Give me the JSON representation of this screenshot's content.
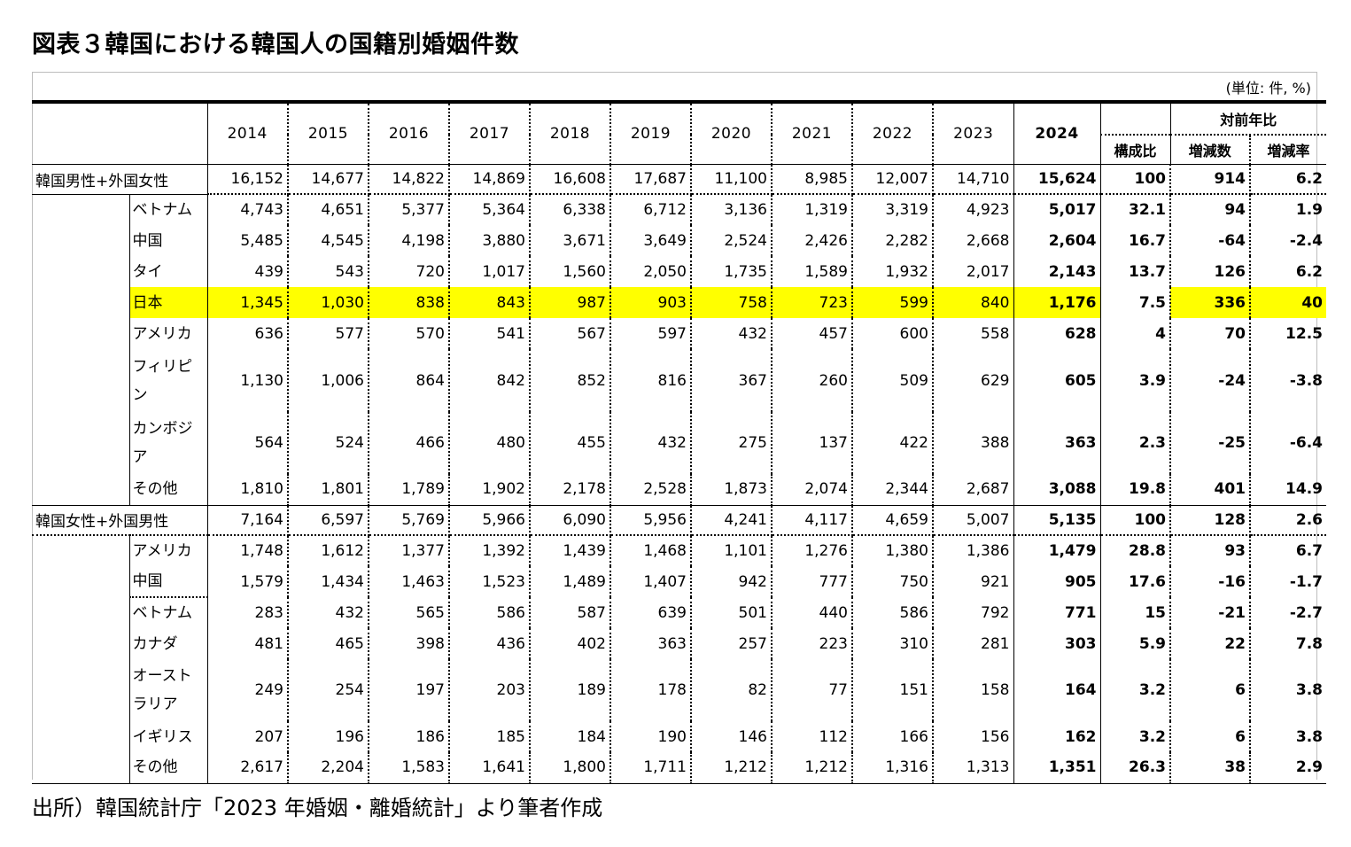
{
  "title": "図表３韓国における韓国人の国籍別婚姻件数",
  "unit_note": "(単位: 件, %)",
  "source": "出所）韓国統計庁「2023 年婚姻・離婚統計」より筆者作成",
  "header": {
    "years": [
      "2014",
      "2015",
      "2016",
      "2017",
      "2018",
      "2019",
      "2020",
      "2021",
      "2022",
      "2023",
      "2024"
    ],
    "yoy_group": "対前年比",
    "share": "構成比",
    "change": "増減数",
    "rate": "増減率"
  },
  "highlight_color": "#ffff00",
  "groups": [
    {
      "label": "韓国男性+外国女性",
      "total": [
        "16,152",
        "14,677",
        "14,822",
        "14,869",
        "16,608",
        "17,687",
        "11,100",
        "8,985",
        "12,007",
        "14,710",
        "15,624",
        "100",
        "914",
        "6.2"
      ],
      "rows": [
        {
          "name": "ベトナム",
          "values": [
            "4,743",
            "4,651",
            "5,377",
            "5,364",
            "6,338",
            "6,712",
            "3,136",
            "1,319",
            "3,319",
            "4,923",
            "5,017",
            "32.1",
            "94",
            "1.9"
          ]
        },
        {
          "name": "中国",
          "values": [
            "5,485",
            "4,545",
            "4,198",
            "3,880",
            "3,671",
            "3,649",
            "2,524",
            "2,426",
            "2,282",
            "2,668",
            "2,604",
            "16.7",
            "-64",
            "-2.4"
          ]
        },
        {
          "name": "タイ",
          "values": [
            "439",
            "543",
            "720",
            "1,017",
            "1,560",
            "2,050",
            "1,735",
            "1,589",
            "1,932",
            "2,017",
            "2,143",
            "13.7",
            "126",
            "6.2"
          ]
        },
        {
          "name": "日本",
          "values": [
            "1,345",
            "1,030",
            "838",
            "843",
            "987",
            "903",
            "758",
            "723",
            "599",
            "840",
            "1,176",
            "7.5",
            "336",
            "40"
          ]
        },
        {
          "name": "アメリカ",
          "values": [
            "636",
            "577",
            "570",
            "541",
            "567",
            "597",
            "432",
            "457",
            "600",
            "558",
            "628",
            "4",
            "70",
            "12.5"
          ]
        },
        {
          "name": "フィリピン",
          "values": [
            "1,130",
            "1,006",
            "864",
            "842",
            "852",
            "816",
            "367",
            "260",
            "509",
            "629",
            "605",
            "3.9",
            "-24",
            "-3.8"
          ]
        },
        {
          "name": "カンボジア",
          "values": [
            "564",
            "524",
            "466",
            "480",
            "455",
            "432",
            "275",
            "137",
            "422",
            "388",
            "363",
            "2.3",
            "-25",
            "-6.4"
          ]
        },
        {
          "name": "その他",
          "values": [
            "1,810",
            "1,801",
            "1,789",
            "1,902",
            "2,178",
            "2,528",
            "1,873",
            "2,074",
            "2,344",
            "2,687",
            "3,088",
            "19.8",
            "401",
            "14.9"
          ]
        }
      ]
    },
    {
      "label": "韓国女性+外国男性",
      "total": [
        "7,164",
        "6,597",
        "5,769",
        "5,966",
        "6,090",
        "5,956",
        "4,241",
        "4,117",
        "4,659",
        "5,007",
        "5,135",
        "100",
        "128",
        "2.6"
      ],
      "rows": [
        {
          "name": "アメリカ",
          "values": [
            "1,748",
            "1,612",
            "1,377",
            "1,392",
            "1,439",
            "1,468",
            "1,101",
            "1,276",
            "1,380",
            "1,386",
            "1,479",
            "28.8",
            "93",
            "6.7"
          ]
        },
        {
          "name": "中国",
          "values": [
            "1,579",
            "1,434",
            "1,463",
            "1,523",
            "1,489",
            "1,407",
            "942",
            "777",
            "750",
            "921",
            "905",
            "17.6",
            "-16",
            "-1.7"
          ]
        },
        {
          "name": "ベトナム",
          "values": [
            "283",
            "432",
            "565",
            "586",
            "587",
            "639",
            "501",
            "440",
            "586",
            "792",
            "771",
            "15",
            "-21",
            "-2.7"
          ]
        },
        {
          "name": "カナダ",
          "values": [
            "481",
            "465",
            "398",
            "436",
            "402",
            "363",
            "257",
            "223",
            "310",
            "281",
            "303",
            "5.9",
            "22",
            "7.8"
          ]
        },
        {
          "name": "オーストラリア",
          "values": [
            "249",
            "254",
            "197",
            "203",
            "189",
            "178",
            "82",
            "77",
            "151",
            "158",
            "164",
            "3.2",
            "6",
            "3.8"
          ]
        },
        {
          "name": "イギリス",
          "values": [
            "207",
            "196",
            "186",
            "185",
            "184",
            "190",
            "146",
            "112",
            "166",
            "156",
            "162",
            "3.2",
            "6",
            "3.8"
          ]
        },
        {
          "name": "その他",
          "values": [
            "2,617",
            "2,204",
            "1,583",
            "1,641",
            "1,800",
            "1,711",
            "1,212",
            "1,212",
            "1,316",
            "1,313",
            "1,351",
            "26.3",
            "38",
            "2.9"
          ]
        }
      ]
    }
  ]
}
